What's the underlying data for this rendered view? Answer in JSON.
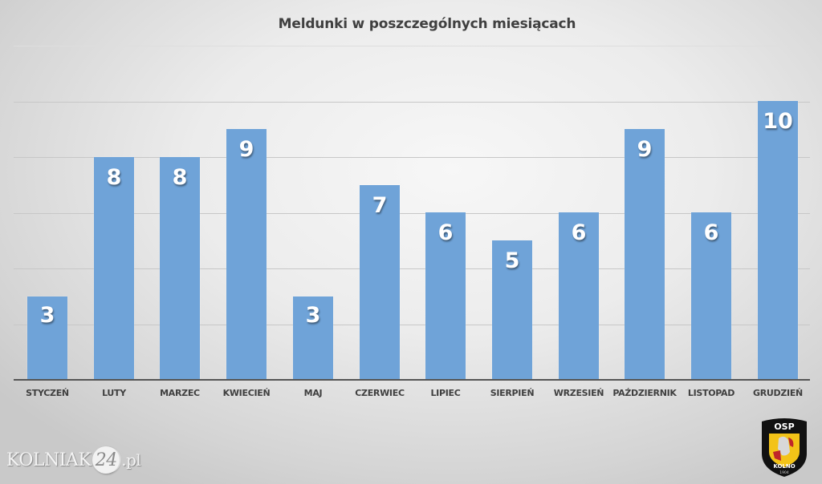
{
  "chart_data": {
    "type": "bar",
    "title": "Meldunki w poszczególnych miesiącach",
    "xlabel": "",
    "ylabel": "",
    "categories": [
      "STYCZEŃ",
      "LUTY",
      "MARZEC",
      "KWIECIEŃ",
      "MAJ",
      "CZERWIEC",
      "LIPIEC",
      "SIERPIEŃ",
      "WRZESIEŃ",
      "PAŹDZIERNIK",
      "LISTOPAD",
      "GRUDZIEŃ"
    ],
    "values": [
      3,
      8,
      8,
      9,
      3,
      7,
      6,
      5,
      6,
      9,
      6,
      10
    ],
    "ylim": [
      0,
      12
    ],
    "yticks": [
      0,
      2,
      4,
      6,
      8,
      10,
      12
    ],
    "ytick_labels_visible": false,
    "grid": true,
    "legend": null,
    "data_labels": true,
    "bar_color": "#6fa3d8"
  },
  "branding": {
    "site_prefix": "KOLNIAK",
    "site_number": "24",
    "site_suffix": ".pl",
    "logo": {
      "top_text": "OSP",
      "bottom_text": "KOLNO",
      "year": "1904"
    }
  }
}
